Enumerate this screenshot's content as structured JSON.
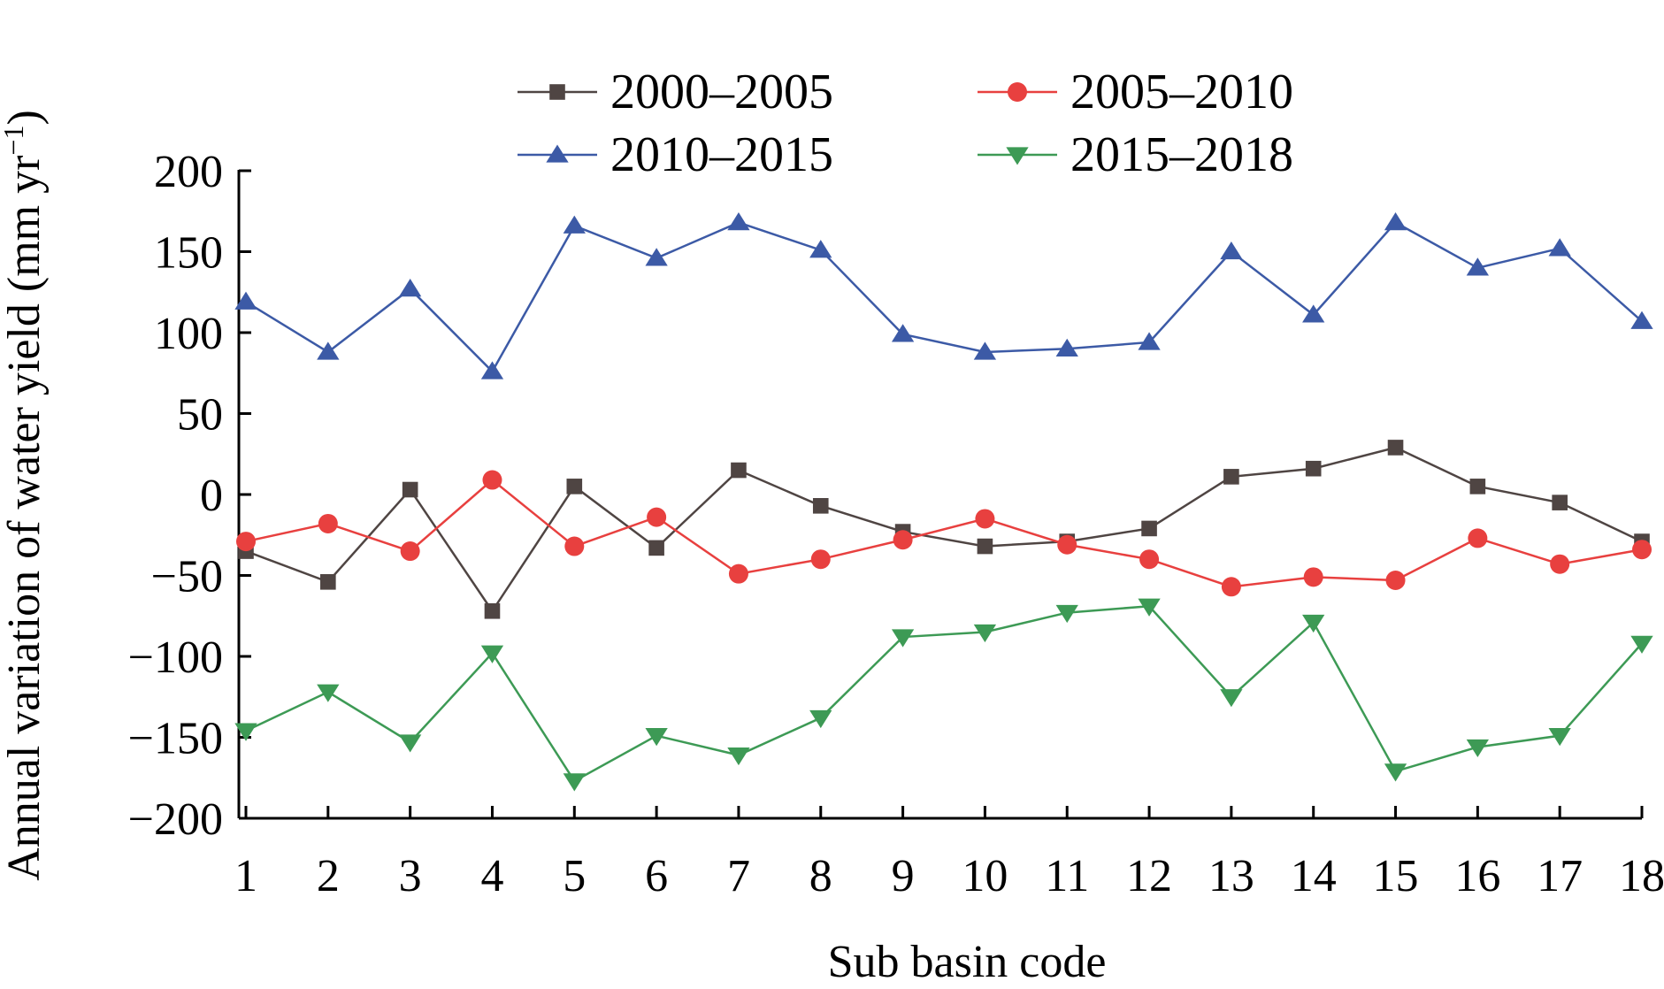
{
  "chart_data": {
    "type": "line",
    "title": "",
    "xlabel": "Sub basin code",
    "ylabel": "Annual variation of water yield (mm yr",
    "ylabel_sup": "−1",
    "ylabel_close": ")",
    "categories": [
      "1",
      "2",
      "3",
      "4",
      "5",
      "6",
      "7",
      "8",
      "9",
      "10",
      "11",
      "12",
      "13",
      "14",
      "15",
      "16",
      "17",
      "18"
    ],
    "ylim": [
      -200,
      200
    ],
    "yticks": [
      200,
      150,
      100,
      50,
      0,
      -50,
      -100,
      -150,
      -200
    ],
    "ytick_labels": [
      "200",
      "150",
      "100",
      "50",
      "0",
      "−50",
      "−100",
      "−150",
      "−200"
    ],
    "grid": false,
    "legend_position": "top",
    "series": [
      {
        "name": "2000–2005",
        "color": "#4f4543",
        "marker": "square",
        "values": [
          -35,
          -54,
          3,
          -72,
          5,
          -33,
          15,
          -7,
          -23,
          -32,
          -29,
          -21,
          11,
          16,
          29,
          5,
          -5,
          -29
        ]
      },
      {
        "name": "2005–2010",
        "color": "#e8403f",
        "marker": "circle",
        "values": [
          -29,
          -18,
          -35,
          9,
          -32,
          -14,
          -49,
          -40,
          -28,
          -15,
          -31,
          -40,
          -57,
          -51,
          -53,
          -27,
          -43,
          -34
        ]
      },
      {
        "name": "2010–2015",
        "color": "#3c5aa6",
        "marker": "triangle-up",
        "values": [
          119,
          88,
          127,
          76,
          166,
          146,
          168,
          151,
          99,
          88,
          90,
          94,
          150,
          111,
          168,
          140,
          152,
          107
        ]
      },
      {
        "name": "2015–2018",
        "color": "#3d9a55",
        "marker": "triangle-down",
        "values": [
          -146,
          -122,
          -153,
          -98,
          -177,
          -149,
          -161,
          -138,
          -88,
          -85,
          -73,
          -69,
          -125,
          -79,
          -171,
          -156,
          -149,
          -92
        ]
      }
    ]
  }
}
